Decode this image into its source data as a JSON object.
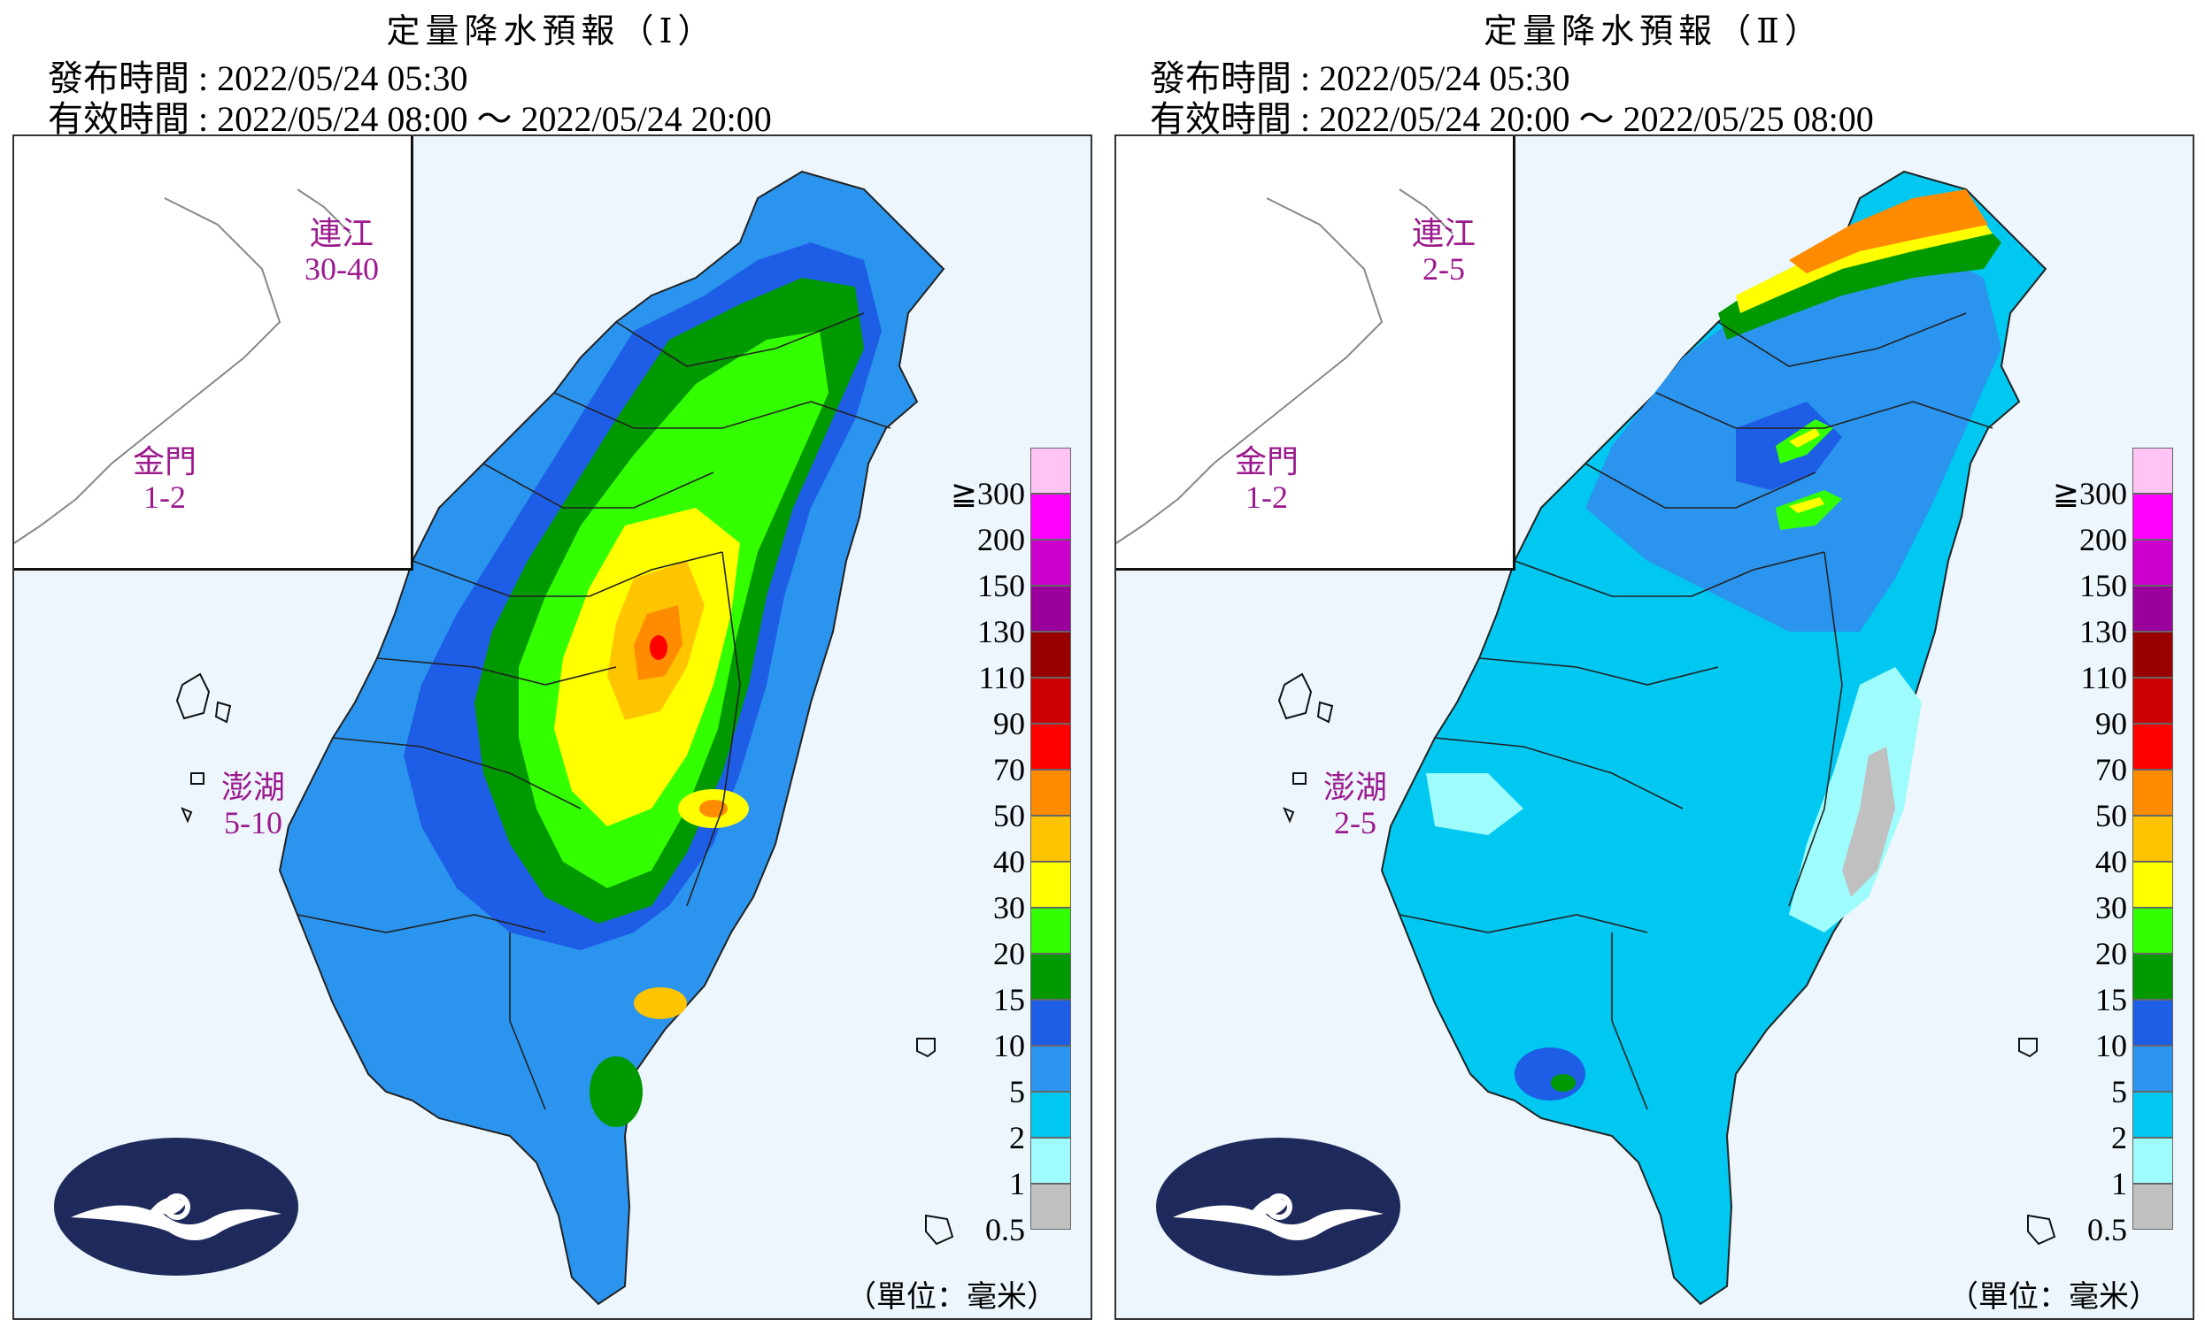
{
  "panels": [
    {
      "title": "定量降水預報（Ⅰ）",
      "issued": "發布時間 : 2022/05/24 05:30",
      "valid": "有效時間 : 2022/05/24 08:00 ～ 2022/05/24 20:00",
      "islands": [
        {
          "name": "連江",
          "range": "30-40"
        },
        {
          "name": "金門",
          "range": "1-2"
        },
        {
          "name": "澎湖",
          "range": "5-10"
        }
      ],
      "unit": "（單位：毫米）"
    },
    {
      "title": "定量降水預報（Ⅱ）",
      "issued": "發布時間 : 2022/05/24 05:30",
      "valid": "有效時間 : 2022/05/24 20:00 ～ 2022/05/25 08:00",
      "islands": [
        {
          "name": "連江",
          "range": "2-5"
        },
        {
          "name": "金門",
          "range": "1-2"
        },
        {
          "name": "澎湖",
          "range": "2-5"
        }
      ],
      "unit": "（單位：毫米）"
    }
  ],
  "legend": {
    "labels": [
      "≧300",
      "200",
      "150",
      "130",
      "110",
      "90",
      "70",
      "50",
      "40",
      "30",
      "20",
      "15",
      "10",
      "5",
      "2",
      "1",
      "0.5"
    ],
    "colors": [
      "#ffc4f4",
      "#ff00ff",
      "#cc00cc",
      "#99009c",
      "#990000",
      "#cc0000",
      "#ff0000",
      "#ff8c00",
      "#ffc400",
      "#ffff00",
      "#33ff00",
      "#009900",
      "#1e5ee6",
      "#2b94ee",
      "#00c8f0",
      "#9ffcfc",
      "#c0c0c0"
    ]
  }
}
